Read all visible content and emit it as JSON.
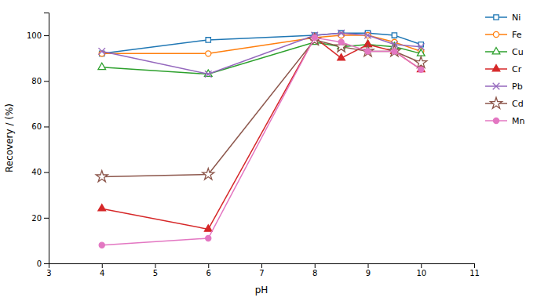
{
  "chart_data": {
    "type": "line",
    "x": [
      4,
      6,
      8,
      8.5,
      9,
      9.5,
      10
    ],
    "xlabel": "pH",
    "ylabel": "Recovery / (%)",
    "series": [
      {
        "name": "Ni",
        "marker": "square-open",
        "values": [
          92,
          98,
          100,
          101,
          101,
          100,
          96
        ]
      },
      {
        "name": "Fe",
        "marker": "circle-open",
        "values": [
          92,
          92,
          99,
          100,
          100,
          97,
          93
        ]
      },
      {
        "name": "Cu",
        "marker": "triangle-open",
        "values": [
          86,
          83,
          97,
          95,
          96,
          95,
          92
        ]
      },
      {
        "name": "Cr",
        "marker": "triangle",
        "values": [
          24,
          15,
          99,
          90,
          96,
          93,
          85
        ]
      },
      {
        "name": "Pb",
        "marker": "x",
        "values": [
          93,
          83,
          100,
          101,
          100,
          96,
          95
        ]
      },
      {
        "name": "Cd",
        "marker": "star-open",
        "values": [
          38,
          39,
          98,
          95,
          93,
          93,
          88
        ]
      },
      {
        "name": "Mn",
        "marker": "circle",
        "values": [
          8,
          11,
          99,
          97,
          93,
          93,
          85
        ]
      }
    ],
    "xlim": [
      3,
      11
    ],
    "xticks": [
      3,
      4,
      5,
      6,
      7,
      8,
      9,
      10,
      11
    ],
    "ylim": [
      0,
      110
    ],
    "yticks": [
      0,
      20,
      40,
      60,
      80,
      100
    ],
    "grid": false,
    "legend": "right"
  }
}
